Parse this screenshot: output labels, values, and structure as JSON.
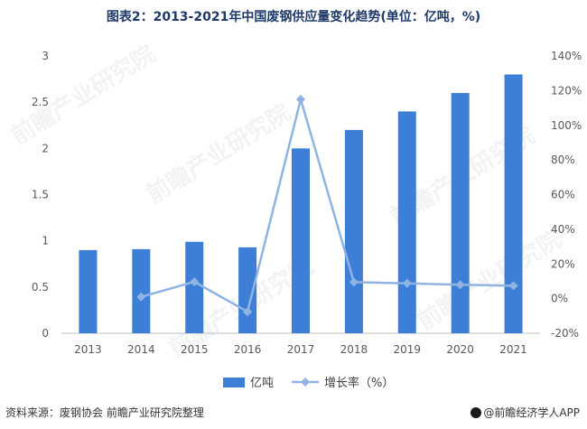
{
  "title": "图表2：2013-2021年中国废钢供应量变化趋势(单位：亿吨，%)",
  "source": "资料来源：废钢协会 前瞻产业研究院整理",
  "brand": "@前瞻经济学人APP",
  "watermark": "前瞻产业研究院",
  "colors": {
    "bar": "#3d7fd6",
    "line": "#8fb4e3",
    "axis": "#bfbfbf",
    "title": "#1f3a68"
  },
  "chart_data": {
    "type": "bar",
    "categories": [
      "2013",
      "2014",
      "2015",
      "2016",
      "2017",
      "2018",
      "2019",
      "2020",
      "2021"
    ],
    "series": [
      {
        "name": "亿吨",
        "type": "bar",
        "axis": "left",
        "values": [
          0.9,
          0.91,
          0.99,
          0.93,
          2.0,
          2.2,
          2.4,
          2.6,
          2.8
        ]
      },
      {
        "name": "增长率（%）",
        "type": "line",
        "axis": "right",
        "values": [
          null,
          1,
          9.7,
          -7.6,
          115,
          9.5,
          8.8,
          8.0,
          7.4
        ]
      }
    ],
    "ylim_left": [
      0,
      3
    ],
    "yticks_left": [
      "0",
      "0.5",
      "1",
      "1.5",
      "2",
      "2.5",
      "3"
    ],
    "ylim_right": [
      -20,
      140
    ],
    "yticks_right": [
      "-20%",
      "0%",
      "20%",
      "40%",
      "60%",
      "80%",
      "100%",
      "120%",
      "140%"
    ],
    "legend_position": "bottom",
    "grid": false
  }
}
